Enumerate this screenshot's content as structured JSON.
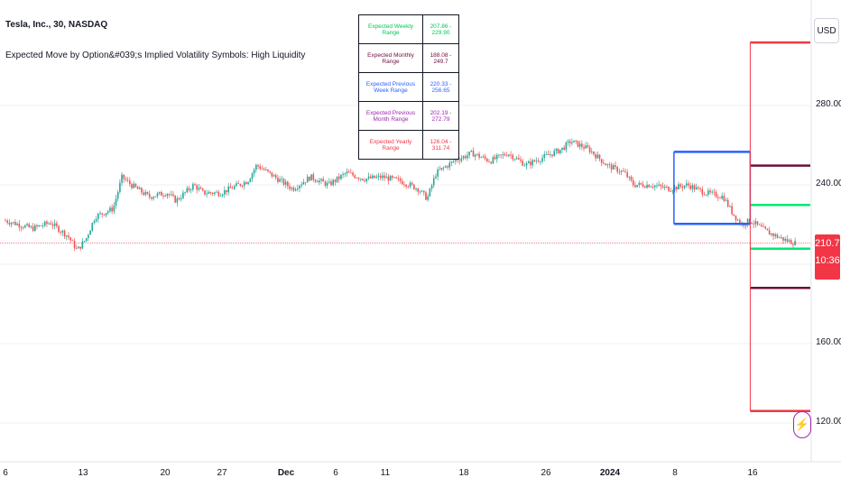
{
  "header": {
    "symbol_title": "Tesla, Inc., 30, NASDAQ",
    "indicator_title": "Expected Move by Option&#039;s Implied Volatility Symbols: High Liquidity"
  },
  "range_table": [
    {
      "label": "Expected Weekly Range",
      "value": "207.86 - 229.90",
      "color": "#00c853"
    },
    {
      "label": "Expected Monthly Range",
      "value": "188.08 - 249.7",
      "color": "#6d0f3a"
    },
    {
      "label": "Expected Previous Week Range",
      "value": "220.33 - 256.65",
      "color": "#2962ff"
    },
    {
      "label": "Expected Previous Month Range",
      "value": "202.19 - 272.79",
      "color": "#9c27b0"
    },
    {
      "label": "Expected Yearly Range",
      "value": "126.04 - 311.74",
      "color": "#f23645"
    }
  ],
  "price_axis": {
    "currency": "USD",
    "ticks": [
      "280.00",
      "240.00",
      "160.00",
      "120.00"
    ],
    "last_price": "210.72",
    "countdown": "10:36"
  },
  "colors": {
    "up": "#26a69a",
    "down": "#ef5350",
    "weekly": "#00e676",
    "monthly": "#6d0f3a",
    "prev_week": "#2962ff",
    "yearly": "#f23645",
    "grid": "#eef0f3",
    "text": "#131722"
  },
  "icons": {
    "alert": "lightning-bolt-icon"
  },
  "chart_data": {
    "type": "candlestick",
    "title": "Tesla, Inc., 30, NASDAQ",
    "x_ticks": [
      "6",
      "13",
      "20",
      "27",
      "Dec",
      "6",
      "11",
      "18",
      "26",
      "2024",
      "8",
      "16"
    ],
    "ylim": [
      110,
      320
    ],
    "y_ticks": [
      120,
      160,
      240,
      280
    ],
    "grid": true,
    "last_price": 210.72,
    "close_path": [
      {
        "t": 0,
        "v": 222
      },
      {
        "t": 3,
        "v": 218
      },
      {
        "t": 5,
        "v": 221
      },
      {
        "t": 7,
        "v": 214
      },
      {
        "t": 8,
        "v": 207
      },
      {
        "t": 9,
        "v": 213
      },
      {
        "t": 10,
        "v": 224
      },
      {
        "t": 12,
        "v": 228
      },
      {
        "t": 13,
        "v": 244
      },
      {
        "t": 14,
        "v": 240
      },
      {
        "t": 16,
        "v": 234
      },
      {
        "t": 18,
        "v": 236
      },
      {
        "t": 19,
        "v": 232
      },
      {
        "t": 21,
        "v": 240
      },
      {
        "t": 22,
        "v": 236
      },
      {
        "t": 24,
        "v": 236
      },
      {
        "t": 27,
        "v": 242
      },
      {
        "t": 28,
        "v": 250
      },
      {
        "t": 30,
        "v": 244
      },
      {
        "t": 32,
        "v": 238
      },
      {
        "t": 34,
        "v": 244
      },
      {
        "t": 36,
        "v": 240
      },
      {
        "t": 38,
        "v": 246
      },
      {
        "t": 40,
        "v": 243
      },
      {
        "t": 42,
        "v": 244
      },
      {
        "t": 44,
        "v": 242
      },
      {
        "t": 46,
        "v": 238
      },
      {
        "t": 47,
        "v": 233
      },
      {
        "t": 48,
        "v": 246
      },
      {
        "t": 50,
        "v": 252
      },
      {
        "t": 52,
        "v": 256
      },
      {
        "t": 54,
        "v": 252
      },
      {
        "t": 56,
        "v": 256
      },
      {
        "t": 58,
        "v": 250
      },
      {
        "t": 60,
        "v": 254
      },
      {
        "t": 62,
        "v": 258
      },
      {
        "t": 63,
        "v": 262
      },
      {
        "t": 65,
        "v": 258
      },
      {
        "t": 67,
        "v": 250
      },
      {
        "t": 69,
        "v": 246
      },
      {
        "t": 70,
        "v": 240
      },
      {
        "t": 72,
        "v": 240
      },
      {
        "t": 74,
        "v": 238
      },
      {
        "t": 76,
        "v": 240
      },
      {
        "t": 78,
        "v": 236
      },
      {
        "t": 80,
        "v": 234
      },
      {
        "t": 81,
        "v": 226
      },
      {
        "t": 82,
        "v": 220
      },
      {
        "t": 83,
        "v": 222
      },
      {
        "t": 85,
        "v": 216
      },
      {
        "t": 87,
        "v": 212
      },
      {
        "t": 88,
        "v": 210.72
      }
    ],
    "ranges": [
      {
        "name": "Expected Weekly Range",
        "low": 207.86,
        "high": 229.9,
        "from_t": 83,
        "to_t": 90
      },
      {
        "name": "Expected Monthly Range",
        "low": 188.08,
        "high": 249.7,
        "from_t": 83,
        "to_t": 90
      },
      {
        "name": "Expected Previous Week Range",
        "low": 220.33,
        "high": 256.65,
        "from_t": 74.5,
        "to_t": 83
      },
      {
        "name": "Expected Yearly Range",
        "low": 126.04,
        "high": 311.74,
        "from_t": 83,
        "to_t": 90
      }
    ]
  }
}
